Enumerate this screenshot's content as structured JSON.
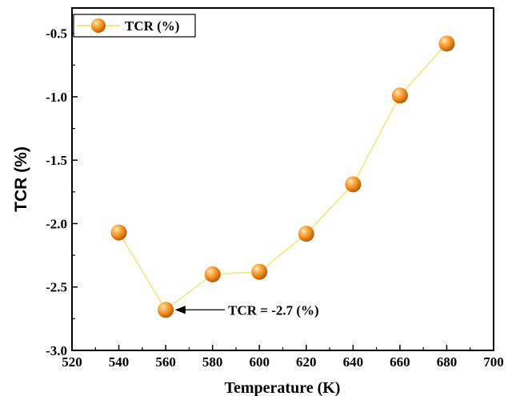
{
  "chart_data": {
    "type": "line",
    "title": "",
    "xlabel": "Temperature (K)",
    "ylabel": "TCR (%)",
    "xlim": [
      520,
      700
    ],
    "ylim": [
      -3.0,
      -0.3
    ],
    "xticks": [
      520,
      540,
      560,
      580,
      600,
      620,
      640,
      660,
      680,
      700
    ],
    "xtick_labels": [
      "520",
      "540",
      "560",
      "580",
      "600",
      "620",
      "640",
      "660",
      "680",
      "700"
    ],
    "yticks": [
      -3.0,
      -2.5,
      -2.0,
      -1.5,
      -1.0,
      -0.5
    ],
    "ytick_labels": [
      "-3.0",
      "-2.5",
      "-2.0",
      "-1.5",
      "-1.0",
      "-0.5"
    ],
    "grid": false,
    "legend": {
      "position": "top-left"
    },
    "series": [
      {
        "name": "TCR (%)",
        "line_color": "#f5e67a",
        "marker_color": "#f28c1e",
        "x": [
          540,
          560,
          580,
          600,
          620,
          640,
          660,
          680
        ],
        "y": [
          -2.07,
          -2.68,
          -2.4,
          -2.38,
          -2.08,
          -1.69,
          -0.99,
          -0.58
        ]
      }
    ],
    "annotations": [
      {
        "text": "TCR = -2.7 (%)",
        "x": 560,
        "y": -2.68
      }
    ]
  }
}
